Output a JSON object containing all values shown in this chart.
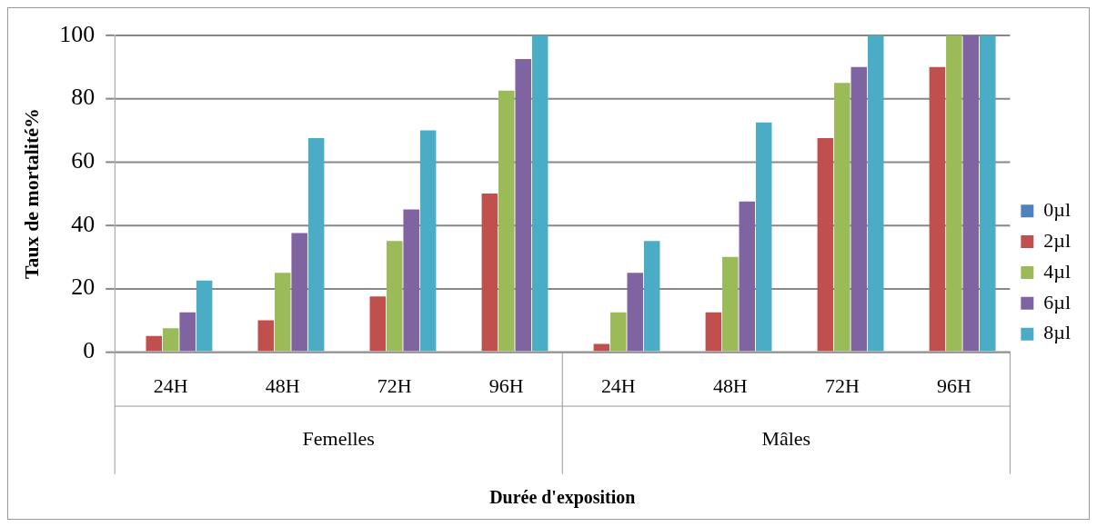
{
  "chart_data": {
    "type": "bar",
    "xlabel": "Durée d'exposition",
    "ylabel": "Taux de mortalité%",
    "categories": [
      "24H",
      "48H",
      "72H",
      "96H",
      "24H",
      "48H",
      "72H",
      "96H"
    ],
    "annotations": [
      "Femelles",
      "Mâles"
    ],
    "series": [
      {
        "name": "0µl",
        "color": "#4f81bd",
        "values": [
          0,
          0,
          0,
          0,
          0,
          0,
          0,
          0
        ]
      },
      {
        "name": "2µl",
        "color": "#c0504d",
        "values": [
          5,
          10,
          17.5,
          50,
          2.5,
          12.5,
          67.5,
          90
        ]
      },
      {
        "name": "4µl",
        "color": "#9bbb59",
        "values": [
          7.5,
          25,
          35,
          82.5,
          12.5,
          30,
          85,
          100
        ]
      },
      {
        "name": "6µl",
        "color": "#8064a2",
        "values": [
          12.5,
          37.5,
          45,
          92.5,
          25,
          47.5,
          90,
          100
        ]
      },
      {
        "name": "8µl",
        "color": "#4bacc6",
        "values": [
          22.5,
          67.5,
          70,
          100,
          35,
          72.5,
          100,
          100
        ]
      }
    ],
    "ylim": [
      0,
      100
    ],
    "yticks": [
      0,
      20,
      40,
      60,
      80,
      100
    ],
    "grid": "y",
    "legend": "right"
  }
}
